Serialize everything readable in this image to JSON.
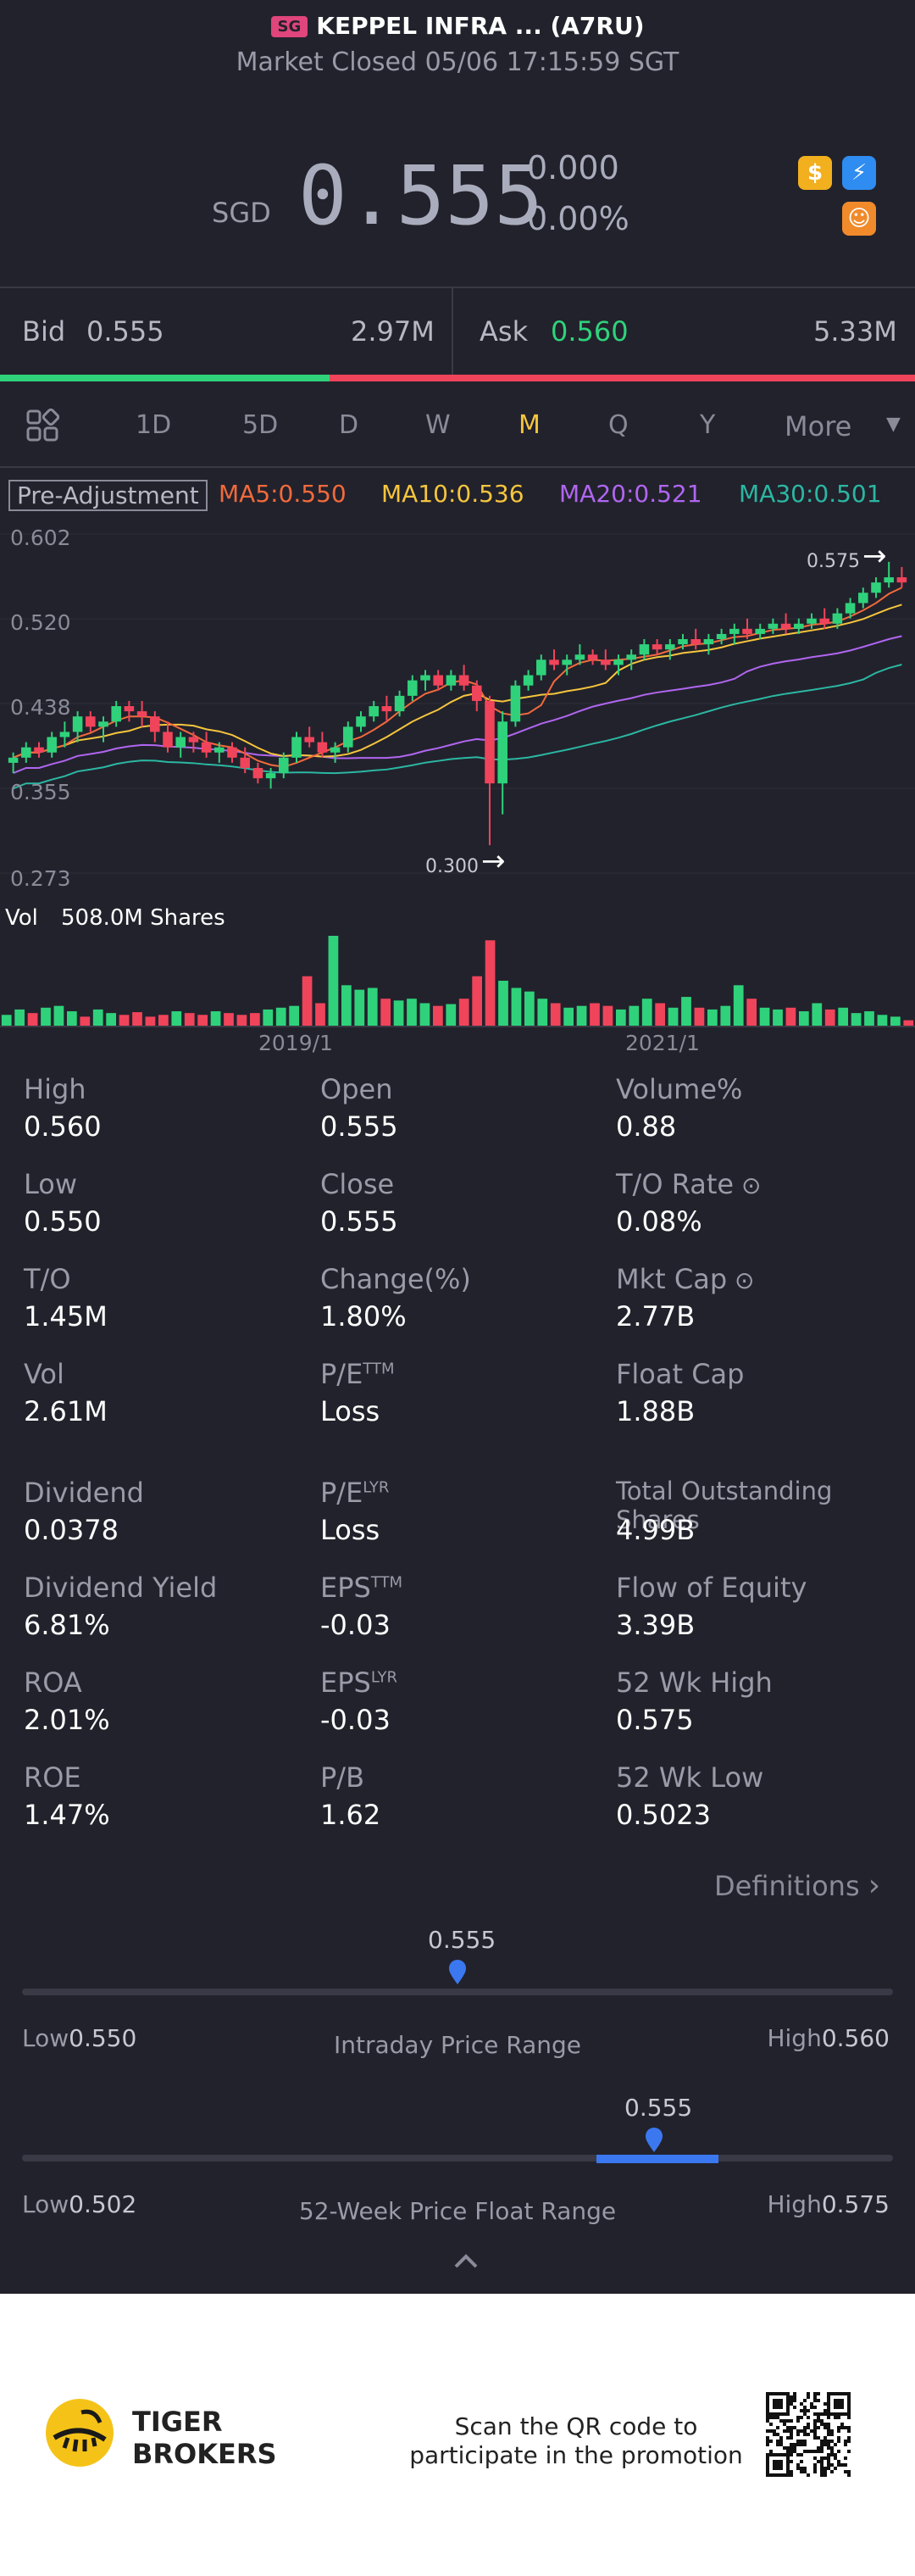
{
  "header": {
    "exchange_badge": "SG",
    "title": "KEPPEL INFRA ... (A7RU)",
    "status": "Market Closed 05/06 17:15:59 SGT"
  },
  "quote": {
    "currency": "SGD",
    "price": "0.555",
    "change": "0.000",
    "change_pct": "0.00%",
    "icons": [
      "dollar-icon",
      "lightning-icon",
      "tiger-icon"
    ]
  },
  "orderbook": {
    "bid_label": "Bid",
    "bid_price": "0.555",
    "bid_size": "2.97M",
    "ask_label": "Ask",
    "ask_price": "0.560",
    "ask_size": "5.33M",
    "bid_ratio": 0.36
  },
  "tabs": {
    "items": [
      "1D",
      "5D",
      "D",
      "W",
      "M",
      "Q",
      "Y",
      "More"
    ],
    "active": "M"
  },
  "indicators": {
    "adjust_label": "Pre-Adjustment",
    "ma5": "MA5:0.550",
    "ma10": "MA10:0.536",
    "ma20": "MA20:0.521",
    "ma30": "MA30:0.501"
  },
  "chart_data": {
    "type": "candlestick",
    "y_ticks": [
      "0.602",
      "0.520",
      "0.438",
      "0.355",
      "0.273"
    ],
    "ylim": [
      0.273,
      0.602
    ],
    "max_marker": "0.575",
    "min_marker": "0.300",
    "x_ticks": [
      "2019/1",
      "2021/1"
    ],
    "volume_label": "Vol",
    "volume_value": "508.0M Shares",
    "ohlc": [
      [
        0.38,
        0.39,
        0.37,
        0.385
      ],
      [
        0.385,
        0.4,
        0.38,
        0.395
      ],
      [
        0.395,
        0.4,
        0.385,
        0.39
      ],
      [
        0.39,
        0.41,
        0.385,
        0.405
      ],
      [
        0.405,
        0.42,
        0.395,
        0.41
      ],
      [
        0.41,
        0.43,
        0.4,
        0.425
      ],
      [
        0.425,
        0.43,
        0.41,
        0.415
      ],
      [
        0.415,
        0.425,
        0.4,
        0.42
      ],
      [
        0.42,
        0.44,
        0.415,
        0.435
      ],
      [
        0.435,
        0.44,
        0.42,
        0.43
      ],
      [
        0.43,
        0.44,
        0.415,
        0.425
      ],
      [
        0.425,
        0.43,
        0.4,
        0.41
      ],
      [
        0.41,
        0.42,
        0.39,
        0.395
      ],
      [
        0.395,
        0.41,
        0.385,
        0.405
      ],
      [
        0.405,
        0.41,
        0.39,
        0.4
      ],
      [
        0.4,
        0.41,
        0.385,
        0.39
      ],
      [
        0.39,
        0.4,
        0.38,
        0.395
      ],
      [
        0.395,
        0.4,
        0.38,
        0.385
      ],
      [
        0.385,
        0.395,
        0.37,
        0.375
      ],
      [
        0.375,
        0.38,
        0.36,
        0.365
      ],
      [
        0.365,
        0.375,
        0.355,
        0.37
      ],
      [
        0.37,
        0.39,
        0.365,
        0.385
      ],
      [
        0.385,
        0.41,
        0.38,
        0.405
      ],
      [
        0.405,
        0.415,
        0.395,
        0.4
      ],
      [
        0.4,
        0.41,
        0.385,
        0.39
      ],
      [
        0.39,
        0.4,
        0.38,
        0.395
      ],
      [
        0.395,
        0.42,
        0.39,
        0.415
      ],
      [
        0.415,
        0.43,
        0.41,
        0.425
      ],
      [
        0.425,
        0.44,
        0.42,
        0.435
      ],
      [
        0.435,
        0.445,
        0.42,
        0.43
      ],
      [
        0.43,
        0.45,
        0.425,
        0.445
      ],
      [
        0.445,
        0.465,
        0.44,
        0.46
      ],
      [
        0.46,
        0.47,
        0.45,
        0.465
      ],
      [
        0.465,
        0.47,
        0.45,
        0.455
      ],
      [
        0.455,
        0.47,
        0.45,
        0.465
      ],
      [
        0.465,
        0.475,
        0.45,
        0.455
      ],
      [
        0.455,
        0.46,
        0.43,
        0.44
      ],
      [
        0.44,
        0.445,
        0.3,
        0.36
      ],
      [
        0.36,
        0.43,
        0.33,
        0.42
      ],
      [
        0.42,
        0.46,
        0.415,
        0.455
      ],
      [
        0.455,
        0.47,
        0.45,
        0.465
      ],
      [
        0.465,
        0.485,
        0.46,
        0.48
      ],
      [
        0.48,
        0.49,
        0.47,
        0.475
      ],
      [
        0.475,
        0.485,
        0.465,
        0.48
      ],
      [
        0.48,
        0.495,
        0.475,
        0.485
      ],
      [
        0.485,
        0.49,
        0.475,
        0.48
      ],
      [
        0.48,
        0.49,
        0.47,
        0.475
      ],
      [
        0.475,
        0.485,
        0.465,
        0.48
      ],
      [
        0.48,
        0.49,
        0.47,
        0.485
      ],
      [
        0.485,
        0.5,
        0.48,
        0.495
      ],
      [
        0.495,
        0.5,
        0.485,
        0.49
      ],
      [
        0.49,
        0.5,
        0.48,
        0.495
      ],
      [
        0.495,
        0.505,
        0.49,
        0.5
      ],
      [
        0.5,
        0.51,
        0.49,
        0.495
      ],
      [
        0.495,
        0.505,
        0.485,
        0.5
      ],
      [
        0.5,
        0.51,
        0.495,
        0.505
      ],
      [
        0.505,
        0.515,
        0.495,
        0.51
      ],
      [
        0.51,
        0.52,
        0.5,
        0.505
      ],
      [
        0.505,
        0.515,
        0.5,
        0.51
      ],
      [
        0.51,
        0.52,
        0.505,
        0.515
      ],
      [
        0.515,
        0.525,
        0.505,
        0.51
      ],
      [
        0.51,
        0.52,
        0.505,
        0.515
      ],
      [
        0.515,
        0.525,
        0.51,
        0.52
      ],
      [
        0.52,
        0.53,
        0.51,
        0.515
      ],
      [
        0.515,
        0.53,
        0.51,
        0.525
      ],
      [
        0.525,
        0.54,
        0.52,
        0.535
      ],
      [
        0.535,
        0.55,
        0.53,
        0.545
      ],
      [
        0.545,
        0.56,
        0.54,
        0.555
      ],
      [
        0.555,
        0.575,
        0.55,
        0.56
      ],
      [
        0.56,
        0.57,
        0.55,
        0.555
      ]
    ],
    "volumes": [
      0.12,
      0.18,
      0.14,
      0.2,
      0.22,
      0.16,
      0.1,
      0.18,
      0.14,
      0.12,
      0.15,
      0.1,
      0.12,
      0.16,
      0.14,
      0.12,
      0.16,
      0.14,
      0.12,
      0.14,
      0.18,
      0.2,
      0.22,
      0.55,
      0.25,
      1.0,
      0.45,
      0.4,
      0.42,
      0.3,
      0.28,
      0.3,
      0.25,
      0.22,
      0.24,
      0.3,
      0.55,
      0.95,
      0.5,
      0.42,
      0.38,
      0.3,
      0.25,
      0.2,
      0.22,
      0.25,
      0.22,
      0.18,
      0.22,
      0.3,
      0.25,
      0.2,
      0.32,
      0.2,
      0.18,
      0.22,
      0.45,
      0.3,
      0.2,
      0.18,
      0.2,
      0.16,
      0.25,
      0.18,
      0.2,
      0.14,
      0.16,
      0.12,
      0.1,
      0.06
    ]
  },
  "stats": {
    "rows": [
      [
        {
          "label": "High",
          "value": "0.560"
        },
        {
          "label": "Open",
          "value": "0.555"
        },
        {
          "label": "Volume%",
          "value": "0.88"
        }
      ],
      [
        {
          "label": "Low",
          "value": "0.550"
        },
        {
          "label": "Close",
          "value": "0.555"
        },
        {
          "label": "T/O Rate",
          "value": "0.08%"
        }
      ],
      [
        {
          "label": "T/O",
          "value": "1.45M"
        },
        {
          "label": "Change(%)",
          "value": "1.80%"
        },
        {
          "label": "Mkt Cap",
          "value": "2.77B"
        }
      ],
      [
        {
          "label": "Vol",
          "value": "2.61M"
        },
        {
          "label": "P/E",
          "sup": "TTM",
          "value": "Loss"
        },
        {
          "label": "Float Cap",
          "value": "1.88B"
        }
      ],
      [
        {
          "label": "Dividend",
          "value": "0.0378"
        },
        {
          "label": "P/E",
          "sup": "LYR",
          "value": "Loss"
        },
        {
          "label": "Total Outstanding Shares",
          "value": "4.99B"
        }
      ],
      [
        {
          "label": "Dividend Yield",
          "value": "6.81%"
        },
        {
          "label": "EPS",
          "sup": "TTM",
          "value": "-0.03"
        },
        {
          "label": "Flow of Equity",
          "value": "3.39B"
        }
      ],
      [
        {
          "label": "ROA",
          "value": "2.01%"
        },
        {
          "label": "EPS",
          "sup": "LYR",
          "value": "-0.03"
        },
        {
          "label": "52 Wk High",
          "value": "0.575"
        }
      ],
      [
        {
          "label": "ROE",
          "value": "1.47%"
        },
        {
          "label": "P/B",
          "value": "1.62"
        },
        {
          "label": "52 Wk Low",
          "value": "0.5023"
        }
      ]
    ],
    "definitions_link": "Definitions"
  },
  "intraday_range": {
    "current": "0.555",
    "low_label": "Low",
    "low": "0.550",
    "high_label": "High",
    "high": "0.560",
    "title": "Intraday Price Range",
    "position": 0.5
  },
  "week52_range": {
    "current": "0.555",
    "low_label": "Low",
    "low": "0.502",
    "high_label": "High",
    "high": "0.575",
    "title": "52-Week Price Float Range",
    "position": 0.726,
    "band_start": 0.66,
    "band_end": 0.8
  },
  "footer": {
    "brand_line1": "TIGER",
    "brand_line2": "BROKERS",
    "promo_line1": "Scan the QR code to",
    "promo_line2": "participate in the promotion"
  },
  "colors": {
    "up": "#2fd27b",
    "down": "#f0445b",
    "accent_yellow": "#f5c53d",
    "blue": "#3b78f0"
  }
}
